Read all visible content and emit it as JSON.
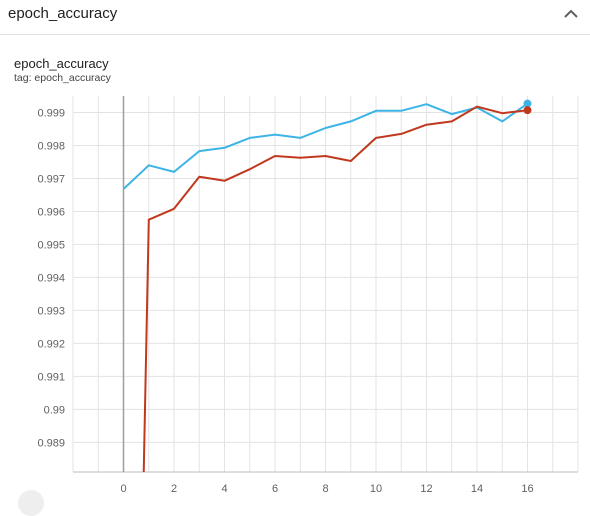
{
  "header": {
    "title": "epoch_accuracy",
    "collapse_icon": "chevron-up-icon"
  },
  "card": {
    "title": "epoch_accuracy",
    "tag": "tag: epoch_accuracy"
  },
  "chart_data": {
    "type": "line",
    "title": "",
    "xlabel": "",
    "ylabel": "",
    "xlim": [
      -2,
      18
    ],
    "ylim": [
      0.9881,
      0.9995
    ],
    "x_ticks": [
      0,
      2,
      4,
      6,
      8,
      10,
      12,
      14,
      16
    ],
    "x_tick_labels": [
      "0",
      "2",
      "4",
      "6",
      "8",
      "10",
      "12",
      "14",
      "16"
    ],
    "y_ticks": [
      0.989,
      0.99,
      0.991,
      0.992,
      0.993,
      0.994,
      0.995,
      0.996,
      0.997,
      0.998,
      0.999
    ],
    "y_tick_labels": [
      "0.989",
      "0.99",
      "0.991",
      "0.992",
      "0.993",
      "0.994",
      "0.995",
      "0.996",
      "0.997",
      "0.998",
      "0.999"
    ],
    "grid": true,
    "series": [
      {
        "color": "#3cb4e6",
        "x": [
          0,
          1,
          2,
          3,
          4,
          5,
          6,
          7,
          8,
          9,
          10,
          11,
          12,
          13,
          14,
          15,
          16
        ],
        "y": [
          0.99668,
          0.9974,
          0.9972,
          0.99783,
          0.99793,
          0.99823,
          0.99833,
          0.99823,
          0.99853,
          0.99873,
          0.99905,
          0.99905,
          0.99925,
          0.99895,
          0.99915,
          0.99873,
          0.99927
        ]
      },
      {
        "color": "#c0391e",
        "x": [
          0.8,
          1,
          2,
          3,
          4,
          5,
          6,
          7,
          8,
          9,
          10,
          11,
          12,
          13,
          14,
          15,
          16
        ],
        "y": [
          0.98806,
          0.99575,
          0.99608,
          0.99705,
          0.99693,
          0.99728,
          0.99768,
          0.99763,
          0.99768,
          0.99753,
          0.99823,
          0.99835,
          0.99863,
          0.99873,
          0.99918,
          0.99898,
          0.99907
        ]
      }
    ]
  }
}
